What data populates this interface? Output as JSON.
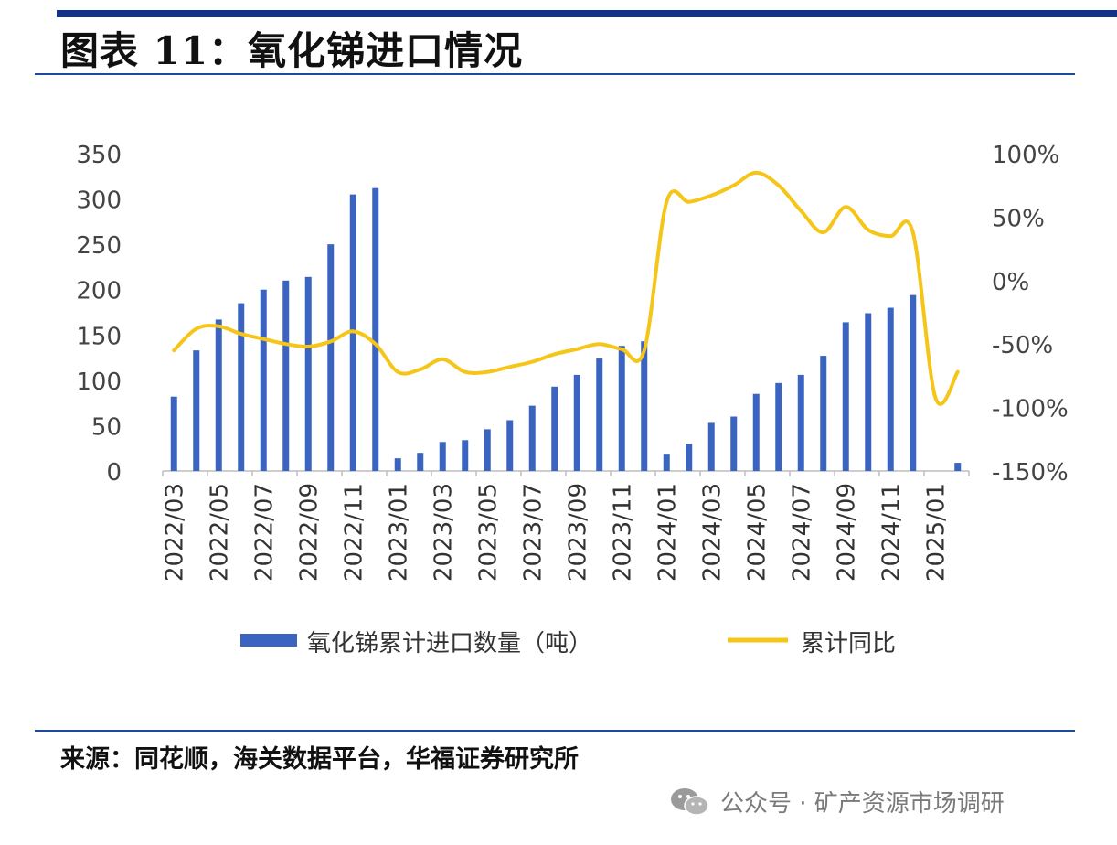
{
  "title": "图表 11：氧化锑进口情况",
  "source": "来源：同花顺，海关数据平台，华福证券研究所",
  "watermark": "公众号 · 矿产资源市场调研",
  "chart_data": {
    "type": "bar+line",
    "months": [
      "2022/03",
      "2022/04",
      "2022/05",
      "2022/06",
      "2022/07",
      "2022/08",
      "2022/09",
      "2022/10",
      "2022/11",
      "2022/12",
      "2023/01",
      "2023/02",
      "2023/03",
      "2023/04",
      "2023/05",
      "2023/06",
      "2023/07",
      "2023/08",
      "2023/09",
      "2023/10",
      "2023/11",
      "2023/12",
      "2024/01",
      "2024/02",
      "2024/03",
      "2024/04",
      "2024/05",
      "2024/06",
      "2024/07",
      "2024/08",
      "2024/09",
      "2024/10",
      "2024/11",
      "2024/12",
      "2025/01",
      "2025/02"
    ],
    "x_tick_labels": [
      "2022/03",
      "2022/05",
      "2022/07",
      "2022/09",
      "2022/11",
      "2023/01",
      "2023/03",
      "2023/05",
      "2023/07",
      "2023/09",
      "2023/11",
      "2024/01",
      "2024/03",
      "2024/05",
      "2024/07",
      "2024/09",
      "2024/11",
      "2025/01"
    ],
    "series": [
      {
        "name": "氧化锑累计进口数量（吨）",
        "type": "bar",
        "axis": "left",
        "color": "#3a64bf",
        "values": [
          82,
          133,
          167,
          185,
          200,
          210,
          214,
          250,
          305,
          312,
          14,
          20,
          32,
          34,
          46,
          56,
          72,
          93,
          106,
          124,
          138,
          143,
          19,
          30,
          53,
          60,
          85,
          97,
          106,
          127,
          164,
          174,
          180,
          194,
          null,
          9
        ]
      },
      {
        "name": "累计同比",
        "type": "line",
        "axis": "right",
        "color": "#f5c518",
        "values": [
          -55,
          -38,
          -36,
          -42,
          -46,
          -50,
          -52,
          -48,
          -40,
          -50,
          -72,
          -70,
          -62,
          -72,
          -72,
          -68,
          -64,
          -58,
          -54,
          -50,
          -54,
          -55,
          62,
          62,
          67,
          75,
          85,
          75,
          55,
          38,
          58,
          40,
          35,
          38,
          -92,
          -72
        ]
      }
    ],
    "y_left": {
      "min": 0,
      "max": 350,
      "ticks": [
        0,
        50,
        100,
        150,
        200,
        250,
        300,
        350
      ]
    },
    "y_right": {
      "min": -150,
      "max": 100,
      "ticks": [
        "-150%",
        "-100%",
        "-50%",
        "0%",
        "50%",
        "100%"
      ]
    },
    "legend_position": "bottom"
  }
}
